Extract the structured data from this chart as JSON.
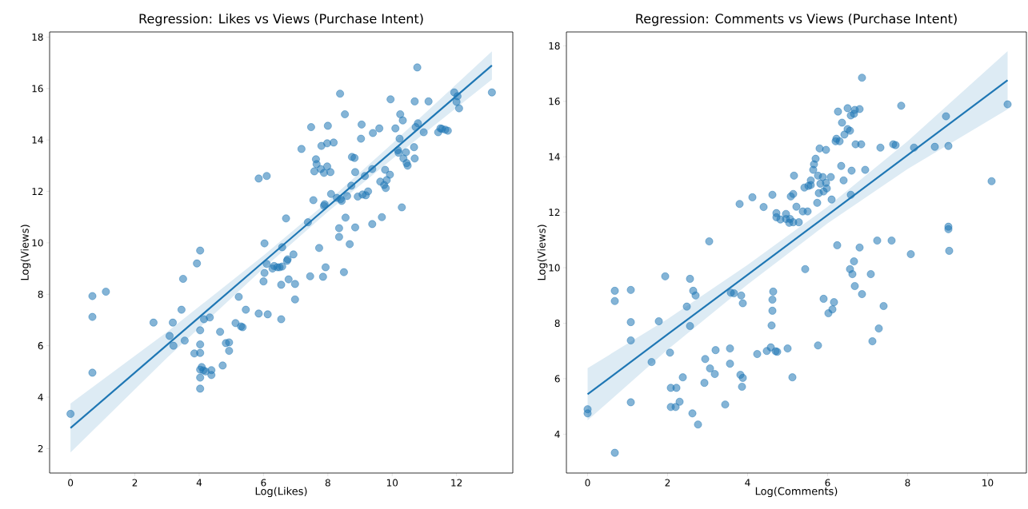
{
  "chart_data": [
    {
      "type": "scatter",
      "marker": "circle",
      "title": "Regression: Likes vs Views (Purchase Intent)",
      "xlabel": "Log(Likes)",
      "ylabel": "Log(Views)",
      "xlim": [
        -0.65,
        13.75
      ],
      "ylim": [
        1.05,
        18.2
      ],
      "xticks": [
        0,
        2,
        4,
        6,
        8,
        10,
        12
      ],
      "yticks": [
        2,
        4,
        6,
        8,
        10,
        12,
        14,
        16,
        18
      ],
      "series": [
        {
          "color": "#1f77b4",
          "x": [
            0,
            0.68,
            0.68,
            0.68,
            1.1,
            2.58,
            3.08,
            3.18,
            3.2,
            3.45,
            3.5,
            3.55,
            3.85,
            3.93,
            4.03,
            4.03,
            4.03,
            4.03,
            4.03,
            4.03,
            4.03,
            4.08,
            4.13,
            4.15,
            4.2,
            4.33,
            4.38,
            4.38,
            4.65,
            4.73,
            4.83,
            4.93,
            4.93,
            5.13,
            5.23,
            5.3,
            5.35,
            5.45,
            5.85,
            5.85,
            6.0,
            6.03,
            6.03,
            6.1,
            6.1,
            6.13,
            6.28,
            6.33,
            6.43,
            6.5,
            6.58,
            6.55,
            6.55,
            6.58,
            6.7,
            6.73,
            6.75,
            6.78,
            6.93,
            6.98,
            6.98,
            7.18,
            7.38,
            7.45,
            7.48,
            7.55,
            7.58,
            7.63,
            7.65,
            7.73,
            7.78,
            7.8,
            7.85,
            7.88,
            7.88,
            7.9,
            7.93,
            7.98,
            7.98,
            8.0,
            8.08,
            8.1,
            8.18,
            8.28,
            8.35,
            8.35,
            8.38,
            8.4,
            8.43,
            8.5,
            8.53,
            8.55,
            8.6,
            8.68,
            8.73,
            8.75,
            8.83,
            8.85,
            8.85,
            8.93,
            9.03,
            9.05,
            9.08,
            9.15,
            9.18,
            9.25,
            9.38,
            9.38,
            9.4,
            9.6,
            9.63,
            9.68,
            9.75,
            9.78,
            9.8,
            9.83,
            9.95,
            9.93,
            10.1,
            10.18,
            10.2,
            10.23,
            10.25,
            10.3,
            10.33,
            10.35,
            10.43,
            10.45,
            10.48,
            10.68,
            10.7,
            10.7,
            10.73,
            10.78,
            10.8,
            10.98,
            11.13,
            11.43,
            11.5,
            11.55,
            11.65,
            11.73,
            11.93,
            12.0,
            12.03,
            12.08,
            13.1
          ],
          "values": [
            3.35,
            7.93,
            7.12,
            4.95,
            8.1,
            6.9,
            6.38,
            6.9,
            6.0,
            7.4,
            8.6,
            6.2,
            5.7,
            9.2,
            9.7,
            6.6,
            6.05,
            5.72,
            5.07,
            4.76,
            4.33,
            5.17,
            5.04,
            7.03,
            5.0,
            7.1,
            5.05,
            4.86,
            6.54,
            5.23,
            6.1,
            5.8,
            6.13,
            6.88,
            7.9,
            6.75,
            6.72,
            7.4,
            12.5,
            7.25,
            8.5,
            8.83,
            9.98,
            12.6,
            9.18,
            7.22,
            9.0,
            9.1,
            9.05,
            9.05,
            9.08,
            8.37,
            7.03,
            9.83,
            10.95,
            9.3,
            9.36,
            8.58,
            9.55,
            8.4,
            7.8,
            13.65,
            10.8,
            8.7,
            14.5,
            11.66,
            12.78,
            13.25,
            13.06,
            9.8,
            12.87,
            13.77,
            8.68,
            11.44,
            12.72,
            11.5,
            9.05,
            13.87,
            12.97,
            14.55,
            12.75,
            11.9,
            13.9,
            11.75,
            10.57,
            10.23,
            15.8,
            11.7,
            11.63,
            8.86,
            15.0,
            10.98,
            11.82,
            9.95,
            12.22,
            13.34,
            13.3,
            12.75,
            10.6,
            11.8,
            14.05,
            14.6,
            11.88,
            12.6,
            11.85,
            12.0,
            10.73,
            12.87,
            14.27,
            14.45,
            12.38,
            11.0,
            12.25,
            12.84,
            12.13,
            12.44,
            15.58,
            12.65,
            14.45,
            13.6,
            13.5,
            14.05,
            15.0,
            11.38,
            14.76,
            13.28,
            13.52,
            13.1,
            13.0,
            13.72,
            15.5,
            13.28,
            14.5,
            16.82,
            14.65,
            14.3,
            15.5,
            14.3,
            14.45,
            14.43,
            14.4,
            14.36,
            15.85,
            15.48,
            15.7,
            15.23,
            15.85
          ]
        },
        {
          "type": "line",
          "marker": "none",
          "color": "#1f77b4",
          "x": [
            0,
            3,
            6,
            8,
            10,
            13.1
          ],
          "values": [
            2.8,
            6.03,
            9.26,
            11.41,
            13.56,
            16.9
          ],
          "lower": [
            1.85,
            5.53,
            9.01,
            11.21,
            13.26,
            16.35
          ],
          "upper": [
            3.75,
            6.53,
            9.51,
            11.61,
            13.86,
            17.45
          ]
        }
      ]
    },
    {
      "type": "scatter",
      "marker": "circle",
      "title": "Regression: Comments vs Views (Purchase Intent)",
      "xlabel": "Log(Comments)",
      "ylabel": "Log(Views)",
      "xlim": [
        -0.53,
        10.97
      ],
      "ylim": [
        2.6,
        18.5
      ],
      "xticks": [
        0,
        2,
        4,
        6,
        8,
        10
      ],
      "yticks": [
        4,
        6,
        8,
        10,
        12,
        14,
        16,
        18
      ],
      "series": [
        {
          "color": "#1f77b4",
          "x": [
            0,
            0,
            0.68,
            0.68,
            0.68,
            1.08,
            1.08,
            1.08,
            1.08,
            1.6,
            1.78,
            1.94,
            2.06,
            2.08,
            2.08,
            2.2,
            2.22,
            2.3,
            2.38,
            2.48,
            2.56,
            2.56,
            2.62,
            2.64,
            2.7,
            2.76,
            2.92,
            2.94,
            3.06,
            3.18,
            3.2,
            3.04,
            3.56,
            3.44,
            3.56,
            3.58,
            3.66,
            3.8,
            3.82,
            3.86,
            3.88,
            3.84,
            3.88,
            4.12,
            4.24,
            4.4,
            4.48,
            4.58,
            4.6,
            4.62,
            4.62,
            4.64,
            4.62,
            4.7,
            4.74,
            4.72,
            4.72,
            4.82,
            4.96,
            4.96,
            5.0,
            5.04,
            5.06,
            5.08,
            5.14,
            5.14,
            5.12,
            5.16,
            5.22,
            5.28,
            5.44,
            5.38,
            5.42,
            5.52,
            5.58,
            5.5,
            5.58,
            5.64,
            5.66,
            5.7,
            5.74,
            5.76,
            5.76,
            5.78,
            5.8,
            5.82,
            5.88,
            5.9,
            5.9,
            5.96,
            5.96,
            5.98,
            6.02,
            6.12,
            6.16,
            6.08,
            6.1,
            6.2,
            6.22,
            6.24,
            6.26,
            6.3,
            6.34,
            6.4,
            6.36,
            6.42,
            6.5,
            6.5,
            6.56,
            6.56,
            6.58,
            6.58,
            6.6,
            6.66,
            6.66,
            6.68,
            6.7,
            6.68,
            6.62,
            6.8,
            6.8,
            6.84,
            6.86,
            6.86,
            6.94,
            7.08,
            7.12,
            7.24,
            7.28,
            7.32,
            7.4,
            7.6,
            7.64,
            7.7,
            7.84,
            8.08,
            8.16,
            8.68,
            8.96,
            9.02,
            9.02,
            9.02,
            9.04,
            10.1,
            10.5
          ],
          "values": [
            4.9,
            4.75,
            3.33,
            9.17,
            8.8,
            9.2,
            8.04,
            7.38,
            5.15,
            6.6,
            8.07,
            9.69,
            6.94,
            5.67,
            4.98,
            4.98,
            5.67,
            5.17,
            6.05,
            8.6,
            9.6,
            7.9,
            4.75,
            9.17,
            9.0,
            4.35,
            5.85,
            6.71,
            6.37,
            6.17,
            7.03,
            10.95,
            7.09,
            5.07,
            6.54,
            9.1,
            9.08,
            12.3,
            6.14,
            5.71,
            6.03,
            9.0,
            8.72,
            12.54,
            6.89,
            12.19,
            7.0,
            7.13,
            7.92,
            8.45,
            8.85,
            9.14,
            12.63,
            6.99,
            6.97,
            11.82,
            11.97,
            11.74,
            11.76,
            11.94,
            7.09,
            11.62,
            11.76,
            12.57,
            12.66,
            11.64,
            6.05,
            13.32,
            12.2,
            11.64,
            9.95,
            12.03,
            12.89,
            12.95,
            12.98,
            12.03,
            13.15,
            13.53,
            13.73,
            13.93,
            12.34,
            7.2,
            13.32,
            12.69,
            14.3,
            13.03,
            13.27,
            12.75,
            8.88,
            13.06,
            14.25,
            12.86,
            8.36,
            8.5,
            8.76,
            13.27,
            12.46,
            14.56,
            14.65,
            10.81,
            15.63,
            14.56,
            13.67,
            13.15,
            15.23,
            14.8,
            15.75,
            15.0,
            9.95,
            14.94,
            15.49,
            12.63,
            13.5,
            15.55,
            10.23,
            15.69,
            14.45,
            9.34,
            9.77,
            15.72,
            10.73,
            14.45,
            16.85,
            9.05,
            13.53,
            9.77,
            7.35,
            10.98,
            7.81,
            14.33,
            8.62,
            10.98,
            14.45,
            14.42,
            15.84,
            10.49,
            14.33,
            14.36,
            15.46,
            14.39,
            11.48,
            11.39,
            10.61,
            13.12,
            15.89
          ]
        },
        {
          "type": "line",
          "marker": "none",
          "color": "#1f77b4",
          "x": [
            0,
            2,
            4,
            6,
            8,
            10.5
          ],
          "values": [
            5.44,
            7.6,
            9.75,
            11.9,
            14.06,
            16.76
          ],
          "lower": [
            4.5,
            7.05,
            9.4,
            11.6,
            13.56,
            15.71
          ],
          "upper": [
            6.38,
            8.15,
            10.1,
            12.2,
            14.56,
            17.81
          ]
        }
      ]
    }
  ]
}
